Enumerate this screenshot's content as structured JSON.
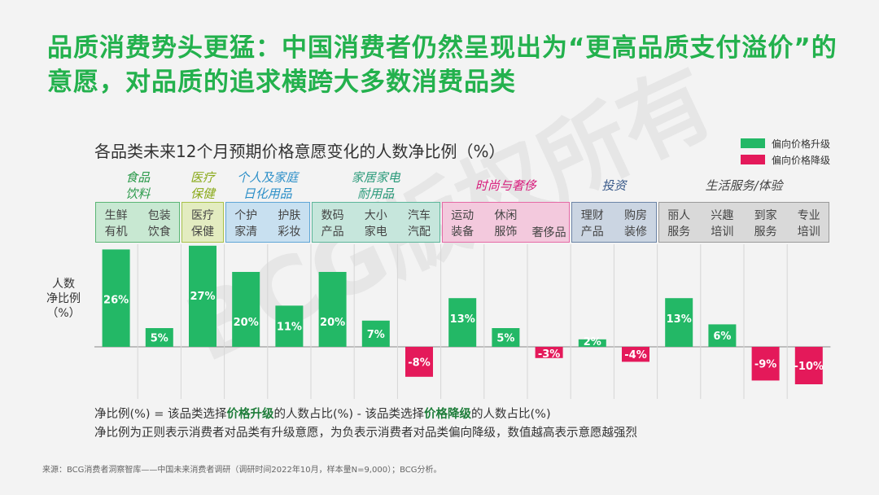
{
  "title": "品质消费势头更猛：中国消费者仍然呈现出为“更高品质支付溢价”的意愿，对品质的追求横跨大多数消费品类",
  "watermark": "BCG版权所有",
  "colors": {
    "up": "#23b866",
    "down": "#e4195a"
  },
  "legend": {
    "up": "偏向价格升级",
    "down": "偏向价格降级"
  },
  "footnote": {
    "part1": "净比例(%) = 该品类选择",
    "bold1": "价格升级",
    "part2": "的人数占比(%) - 该品类选择",
    "bold2": "价格降级",
    "part3": "的人数占比(%)",
    "line2": "净比例为正则表示消费者对品类有升级意愿，为负表示消费者对品类偏向降级，数值越高表示意愿越强烈"
  },
  "source": "来源：BCG消费者洞察智库——中国未来消费者调研（调研时间2022年10月，样本量N=9,000）；BCG分析。",
  "groups": [
    {
      "label": "食品\n饮料",
      "color": "#2a9a4a",
      "fill": "#c8e8d2",
      "border": "#5ab574"
    },
    {
      "label": "医疗\n保健",
      "color": "#8aaa1a",
      "fill": "#e3ecc0",
      "border": "#a8c24a"
    },
    {
      "label": "个人及家庭\n日化用品",
      "color": "#2c8fc8",
      "fill": "#c8e0f0",
      "border": "#5fa6d6"
    },
    {
      "label": "家居家电\n耐用品",
      "color": "#2a9a7a",
      "fill": "#c6e6dc",
      "border": "#5cb59a"
    },
    {
      "label": "时尚与奢侈",
      "color": "#d61a7a",
      "fill": "#f3c9dd",
      "border": "#e56aa6"
    },
    {
      "label": "投资",
      "color": "#3a5a8a",
      "fill": "#cbd5e2",
      "border": "#6c84a6"
    },
    {
      "label": "生活服务/体验",
      "color": "#444444",
      "fill": "#d9d9d9",
      "border": "#9a9a9a"
    }
  ],
  "chart_data": {
    "type": "bar",
    "title": "各品类未来12个月预期价格意愿变化的人数净比例（%）",
    "ylabel": "人数\n净比例\n（%）",
    "categories": [
      "生鲜\n有机",
      "包装\n饮食",
      "医疗\n保健",
      "个护\n家清",
      "护肤\n彩妆",
      "数码\n产品",
      "大小\n家电",
      "汽车\n汽配",
      "运动\n装备",
      "休闲\n服饰",
      "奢侈品",
      "理财\n产品",
      "购房\n装修",
      "丽人\n服务",
      "兴趣\n培训",
      "到家\n服务",
      "专业\n培训"
    ],
    "values": [
      26,
      5,
      27,
      20,
      11,
      20,
      7,
      -8,
      13,
      5,
      -3,
      2,
      -4,
      13,
      6,
      -9,
      -10
    ],
    "value_labels": [
      "26%",
      "5%",
      "27%",
      "20%",
      "11%",
      "20%",
      "7%",
      "-8%",
      "13%",
      "5%",
      "-3%",
      "2%",
      "-4%",
      "13%",
      "6%",
      "-9%",
      "-10%"
    ],
    "group_index": [
      0,
      0,
      1,
      2,
      2,
      3,
      3,
      3,
      4,
      4,
      4,
      5,
      5,
      6,
      6,
      6,
      6
    ]
  }
}
